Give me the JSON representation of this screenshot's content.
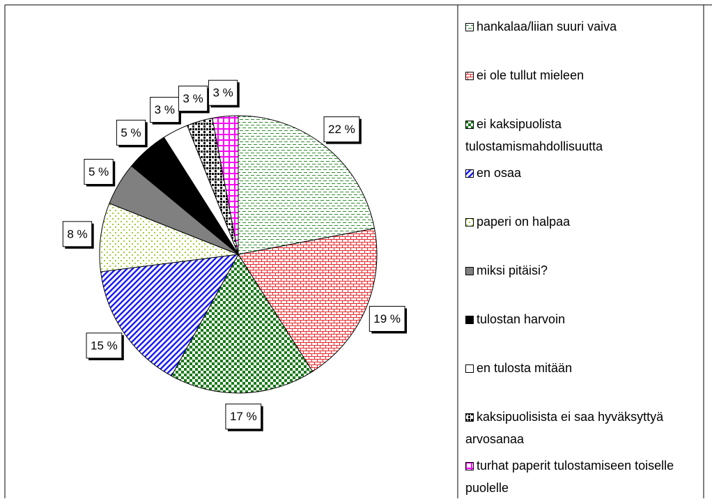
{
  "chart_data": {
    "type": "pie",
    "categories": [
      "hankalaa/liian suuri vaiva",
      "ei ole tullut mieleen",
      "ei kaksipuolista tulostamismahdollisuutta",
      "en osaa",
      "paperi on halpaa",
      "miksi pitäisi?",
      "tulostan harvoin",
      "en tulosta mitään",
      "kaksipuolisista ei saa hyväksyttyä arvosanaa",
      "turhat paperit tulostamiseen toiselle puolelle"
    ],
    "values": [
      22,
      19,
      17,
      15,
      8,
      5,
      5,
      3,
      3,
      3
    ],
    "value_labels": [
      "22 %",
      "19 %",
      "17 %",
      "15 %",
      "8 %",
      "5 %",
      "5 %",
      "3 %",
      "3 %",
      "3 %"
    ],
    "colors": [
      "#2e8b2e",
      "#e8262a",
      "#1a7a1a",
      "#1a1aff",
      "#9acd32",
      "#808080",
      "#000000",
      "#ffffff",
      "#000000",
      "#ff00ff"
    ],
    "legend": "right"
  }
}
